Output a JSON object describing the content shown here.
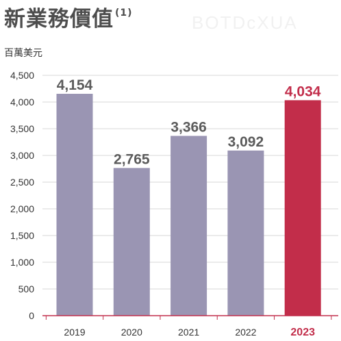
{
  "title": {
    "text": "新業務價值",
    "superscript": "(1)"
  },
  "watermark": "BOTDcXUA",
  "chart_data": {
    "type": "bar",
    "title": "新業務價值",
    "unit_label": "百萬美元",
    "categories": [
      "2019",
      "2020",
      "2021",
      "2022",
      "2023"
    ],
    "values": [
      4154,
      2765,
      3366,
      3092,
      4034
    ],
    "value_labels": [
      "4,154",
      "2,765",
      "3,366",
      "3,092",
      "4,034"
    ],
    "highlight_index": 4,
    "ylim": [
      0,
      4500
    ],
    "y_ticks": [
      0,
      500,
      1000,
      1500,
      2000,
      2500,
      3000,
      3500,
      4000,
      4500
    ],
    "y_tick_labels": [
      "0",
      "500",
      "1,000",
      "1,500",
      "2,000",
      "2,500",
      "3,000",
      "3,500",
      "4,000",
      "4,500"
    ],
    "grid": true,
    "colors": {
      "bar": "#9a95b3",
      "highlight_bar": "#c22d4a",
      "grid": "#d7d7d7",
      "axis": "#c22d4a",
      "highlight_text": "#c22d4a"
    }
  }
}
